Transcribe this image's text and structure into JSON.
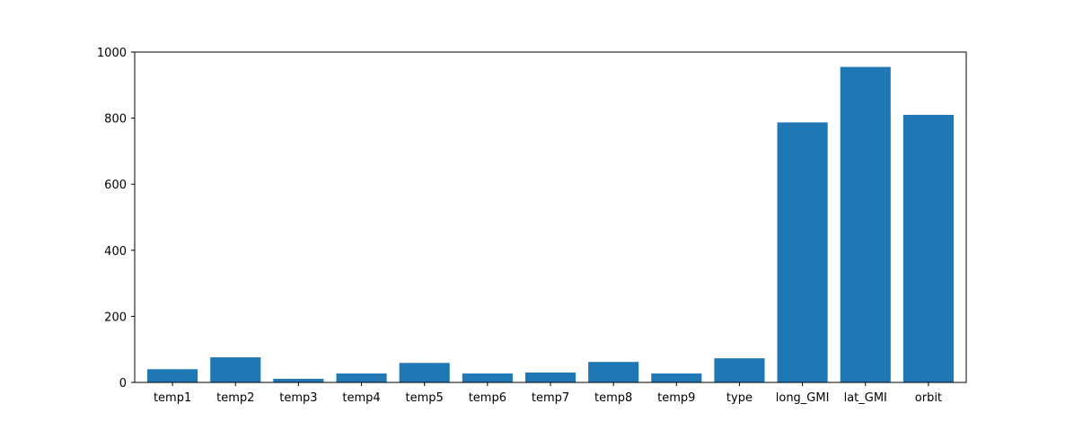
{
  "chart_data": {
    "type": "bar",
    "title": "",
    "xlabel": "",
    "ylabel": "",
    "categories": [
      "temp1",
      "temp2",
      "temp3",
      "temp4",
      "temp5",
      "temp6",
      "temp7",
      "temp8",
      "temp9",
      "type",
      "long_GMI",
      "lat_GMI",
      "orbit"
    ],
    "values": [
      40,
      76,
      11,
      27,
      59,
      27,
      30,
      62,
      27,
      73,
      787,
      955,
      810
    ],
    "ylim": [
      0,
      1000
    ],
    "yticks": [
      0,
      200,
      400,
      600,
      800,
      1000
    ],
    "grid": false,
    "colors": {
      "bar": "#1f77b4",
      "axis": "#000000"
    }
  }
}
